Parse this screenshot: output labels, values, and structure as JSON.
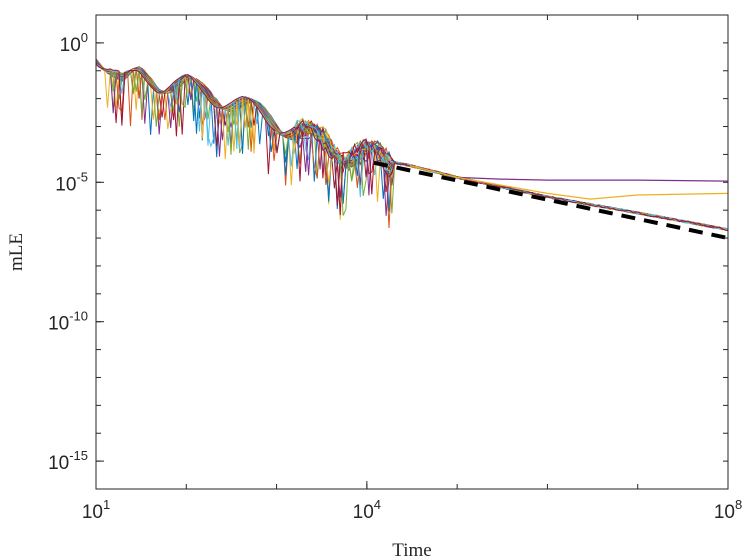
{
  "chart_data": {
    "type": "line",
    "xlabel": "Time",
    "ylabel": "mLE",
    "x_scale": "log",
    "y_scale": "log",
    "xlim": [
      10,
      100000000
    ],
    "ylim": [
      1e-16,
      10
    ],
    "x_ticks": [
      {
        "value": 10,
        "base": "10",
        "exp": "1"
      },
      {
        "value": 10000,
        "base": "10",
        "exp": "4"
      },
      {
        "value": 100000000,
        "base": "10",
        "exp": "8"
      }
    ],
    "y_ticks": [
      {
        "value": 1,
        "base": "10",
        "exp": "0"
      },
      {
        "value": 1e-05,
        "base": "10",
        "exp": "-5"
      },
      {
        "value": 1e-10,
        "base": "10",
        "exp": "-10"
      },
      {
        "value": 1e-15,
        "base": "10",
        "exp": "-15"
      }
    ],
    "grid": false,
    "legend": "none",
    "series_colors": [
      "#0072bd",
      "#d95319",
      "#edb120",
      "#7e2f8e",
      "#77ac30",
      "#4dbeee",
      "#a2142f"
    ],
    "reference_line": {
      "style": "dashed",
      "color": "#000000",
      "x": [
        12000,
        100000000
      ],
      "y": [
        5e-05,
        1e-07
      ]
    },
    "series_envelope": {
      "x": [
        10,
        15,
        20,
        30,
        50,
        100,
        200,
        500,
        1000,
        3000,
        10000,
        30000,
        100000,
        1000000,
        10000000,
        100000000
      ],
      "y": [
        0.3,
        0.12,
        0.05,
        0.08,
        0.03,
        0.04,
        0.012,
        0.005,
        0.0015,
        0.0003,
        8e-05,
        4e-05,
        1.5e-05,
        3e-06,
        8e-07,
        2e-07
      ]
    },
    "outlier_series": [
      {
        "x": [
          30000,
          100000,
          300000,
          1000000,
          10000000,
          100000000
        ],
        "y": [
          4e-05,
          1.5e-05,
          1.3e-05,
          1.2e-05,
          1.2e-05,
          1.1e-05
        ],
        "color": "#7e2f8e"
      },
      {
        "x": [
          30000,
          100000,
          300000,
          1000000,
          3000000,
          10000000,
          100000000
        ],
        "y": [
          4e-05,
          1.5e-05,
          8e-06,
          4e-06,
          2.5e-06,
          3.5e-06,
          4e-06
        ],
        "color": "#edb120"
      }
    ]
  }
}
